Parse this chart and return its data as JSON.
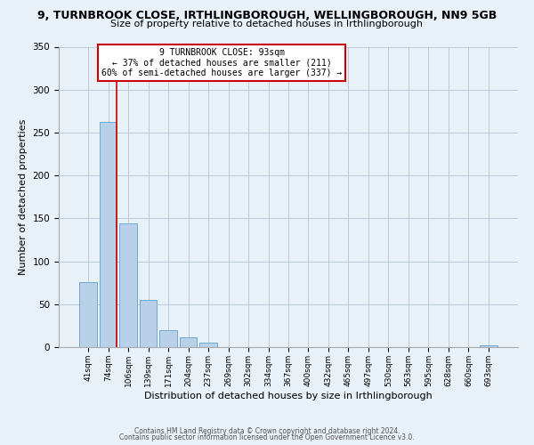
{
  "title": "9, TURNBROOK CLOSE, IRTHLINGBOROUGH, WELLINGBOROUGH, NN9 5GB",
  "subtitle": "Size of property relative to detached houses in Irthlingborough",
  "xlabel": "Distribution of detached houses by size in Irthlingborough",
  "ylabel": "Number of detached properties",
  "bar_labels": [
    "41sqm",
    "74sqm",
    "106sqm",
    "139sqm",
    "171sqm",
    "204sqm",
    "237sqm",
    "269sqm",
    "302sqm",
    "334sqm",
    "367sqm",
    "400sqm",
    "432sqm",
    "465sqm",
    "497sqm",
    "530sqm",
    "563sqm",
    "595sqm",
    "628sqm",
    "660sqm",
    "693sqm"
  ],
  "bar_values": [
    76,
    262,
    144,
    55,
    20,
    11,
    5,
    0,
    0,
    0,
    0,
    0,
    0,
    0,
    0,
    0,
    0,
    0,
    0,
    0,
    2
  ],
  "bar_color": "#b8d0e8",
  "bar_edgecolor": "#6fa8d0",
  "vline_color": "#cc0000",
  "annotation_line1": "9 TURNBROOK CLOSE: 93sqm",
  "annotation_line2": "← 37% of detached houses are smaller (211)",
  "annotation_line3": "60% of semi-detached houses are larger (337) →",
  "annotation_box_color": "#cc0000",
  "annotation_box_bg": "#ffffff",
  "ylim": [
    0,
    350
  ],
  "yticks": [
    0,
    50,
    100,
    150,
    200,
    250,
    300,
    350
  ],
  "grid_color": "#b0c4d8",
  "background_color": "#e8f0f8",
  "footer_line1": "Contains HM Land Registry data © Crown copyright and database right 2024.",
  "footer_line2": "Contains public sector information licensed under the Open Government Licence v3.0."
}
